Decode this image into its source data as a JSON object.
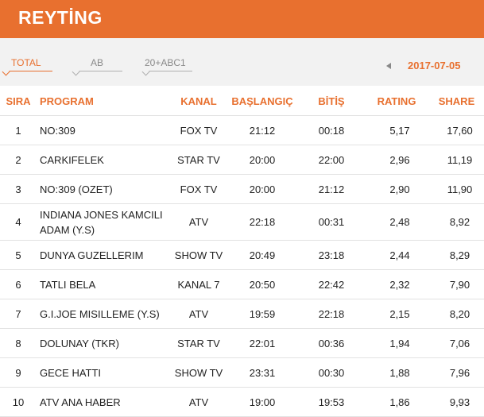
{
  "header": {
    "title": "REYTİNG"
  },
  "tabs": [
    {
      "label": "TOTAL",
      "active": true
    },
    {
      "label": "AB",
      "active": false
    },
    {
      "label": "20+ABC1",
      "active": false
    }
  ],
  "date": "2017-07-05",
  "colors": {
    "accent": "#e8702f",
    "header_bg": "#e8702f",
    "tabs_bg": "#f2f2f2"
  },
  "table": {
    "headers": {
      "rank": "SIRA",
      "program": "PROGRAM",
      "channel": "KANAL",
      "start": "BAŞLANGIÇ",
      "end": "BİTİŞ",
      "rating": "RATING",
      "share": "SHARE"
    },
    "rows": [
      {
        "rank": "1",
        "program": "NO:309",
        "channel": "FOX TV",
        "start": "21:12",
        "end": "00:18",
        "rating": "5,17",
        "share": "17,60"
      },
      {
        "rank": "2",
        "program": "CARKIFELEK",
        "channel": "STAR TV",
        "start": "20:00",
        "end": "22:00",
        "rating": "2,96",
        "share": "11,19"
      },
      {
        "rank": "3",
        "program": "NO:309 (OZET)",
        "channel": "FOX TV",
        "start": "20:00",
        "end": "21:12",
        "rating": "2,90",
        "share": "11,90"
      },
      {
        "rank": "4",
        "program": "INDIANA JONES KAMCILI ADAM (Y.S)",
        "channel": "ATV",
        "start": "22:18",
        "end": "00:31",
        "rating": "2,48",
        "share": "8,92"
      },
      {
        "rank": "5",
        "program": "DUNYA GUZELLERIM",
        "channel": "SHOW TV",
        "start": "20:49",
        "end": "23:18",
        "rating": "2,44",
        "share": "8,29"
      },
      {
        "rank": "6",
        "program": "TATLI BELA",
        "channel": "KANAL 7",
        "start": "20:50",
        "end": "22:42",
        "rating": "2,32",
        "share": "7,90"
      },
      {
        "rank": "7",
        "program": "G.I.JOE MISILLEME (Y.S)",
        "channel": "ATV",
        "start": "19:59",
        "end": "22:18",
        "rating": "2,15",
        "share": "8,20"
      },
      {
        "rank": "8",
        "program": "DOLUNAY (TKR)",
        "channel": "STAR TV",
        "start": "22:01",
        "end": "00:36",
        "rating": "1,94",
        "share": "7,06"
      },
      {
        "rank": "9",
        "program": "GECE HATTI",
        "channel": "SHOW TV",
        "start": "23:31",
        "end": "00:30",
        "rating": "1,88",
        "share": "7,96"
      },
      {
        "rank": "10",
        "program": "ATV ANA HABER",
        "channel": "ATV",
        "start": "19:00",
        "end": "19:53",
        "rating": "1,86",
        "share": "9,93"
      }
    ]
  }
}
